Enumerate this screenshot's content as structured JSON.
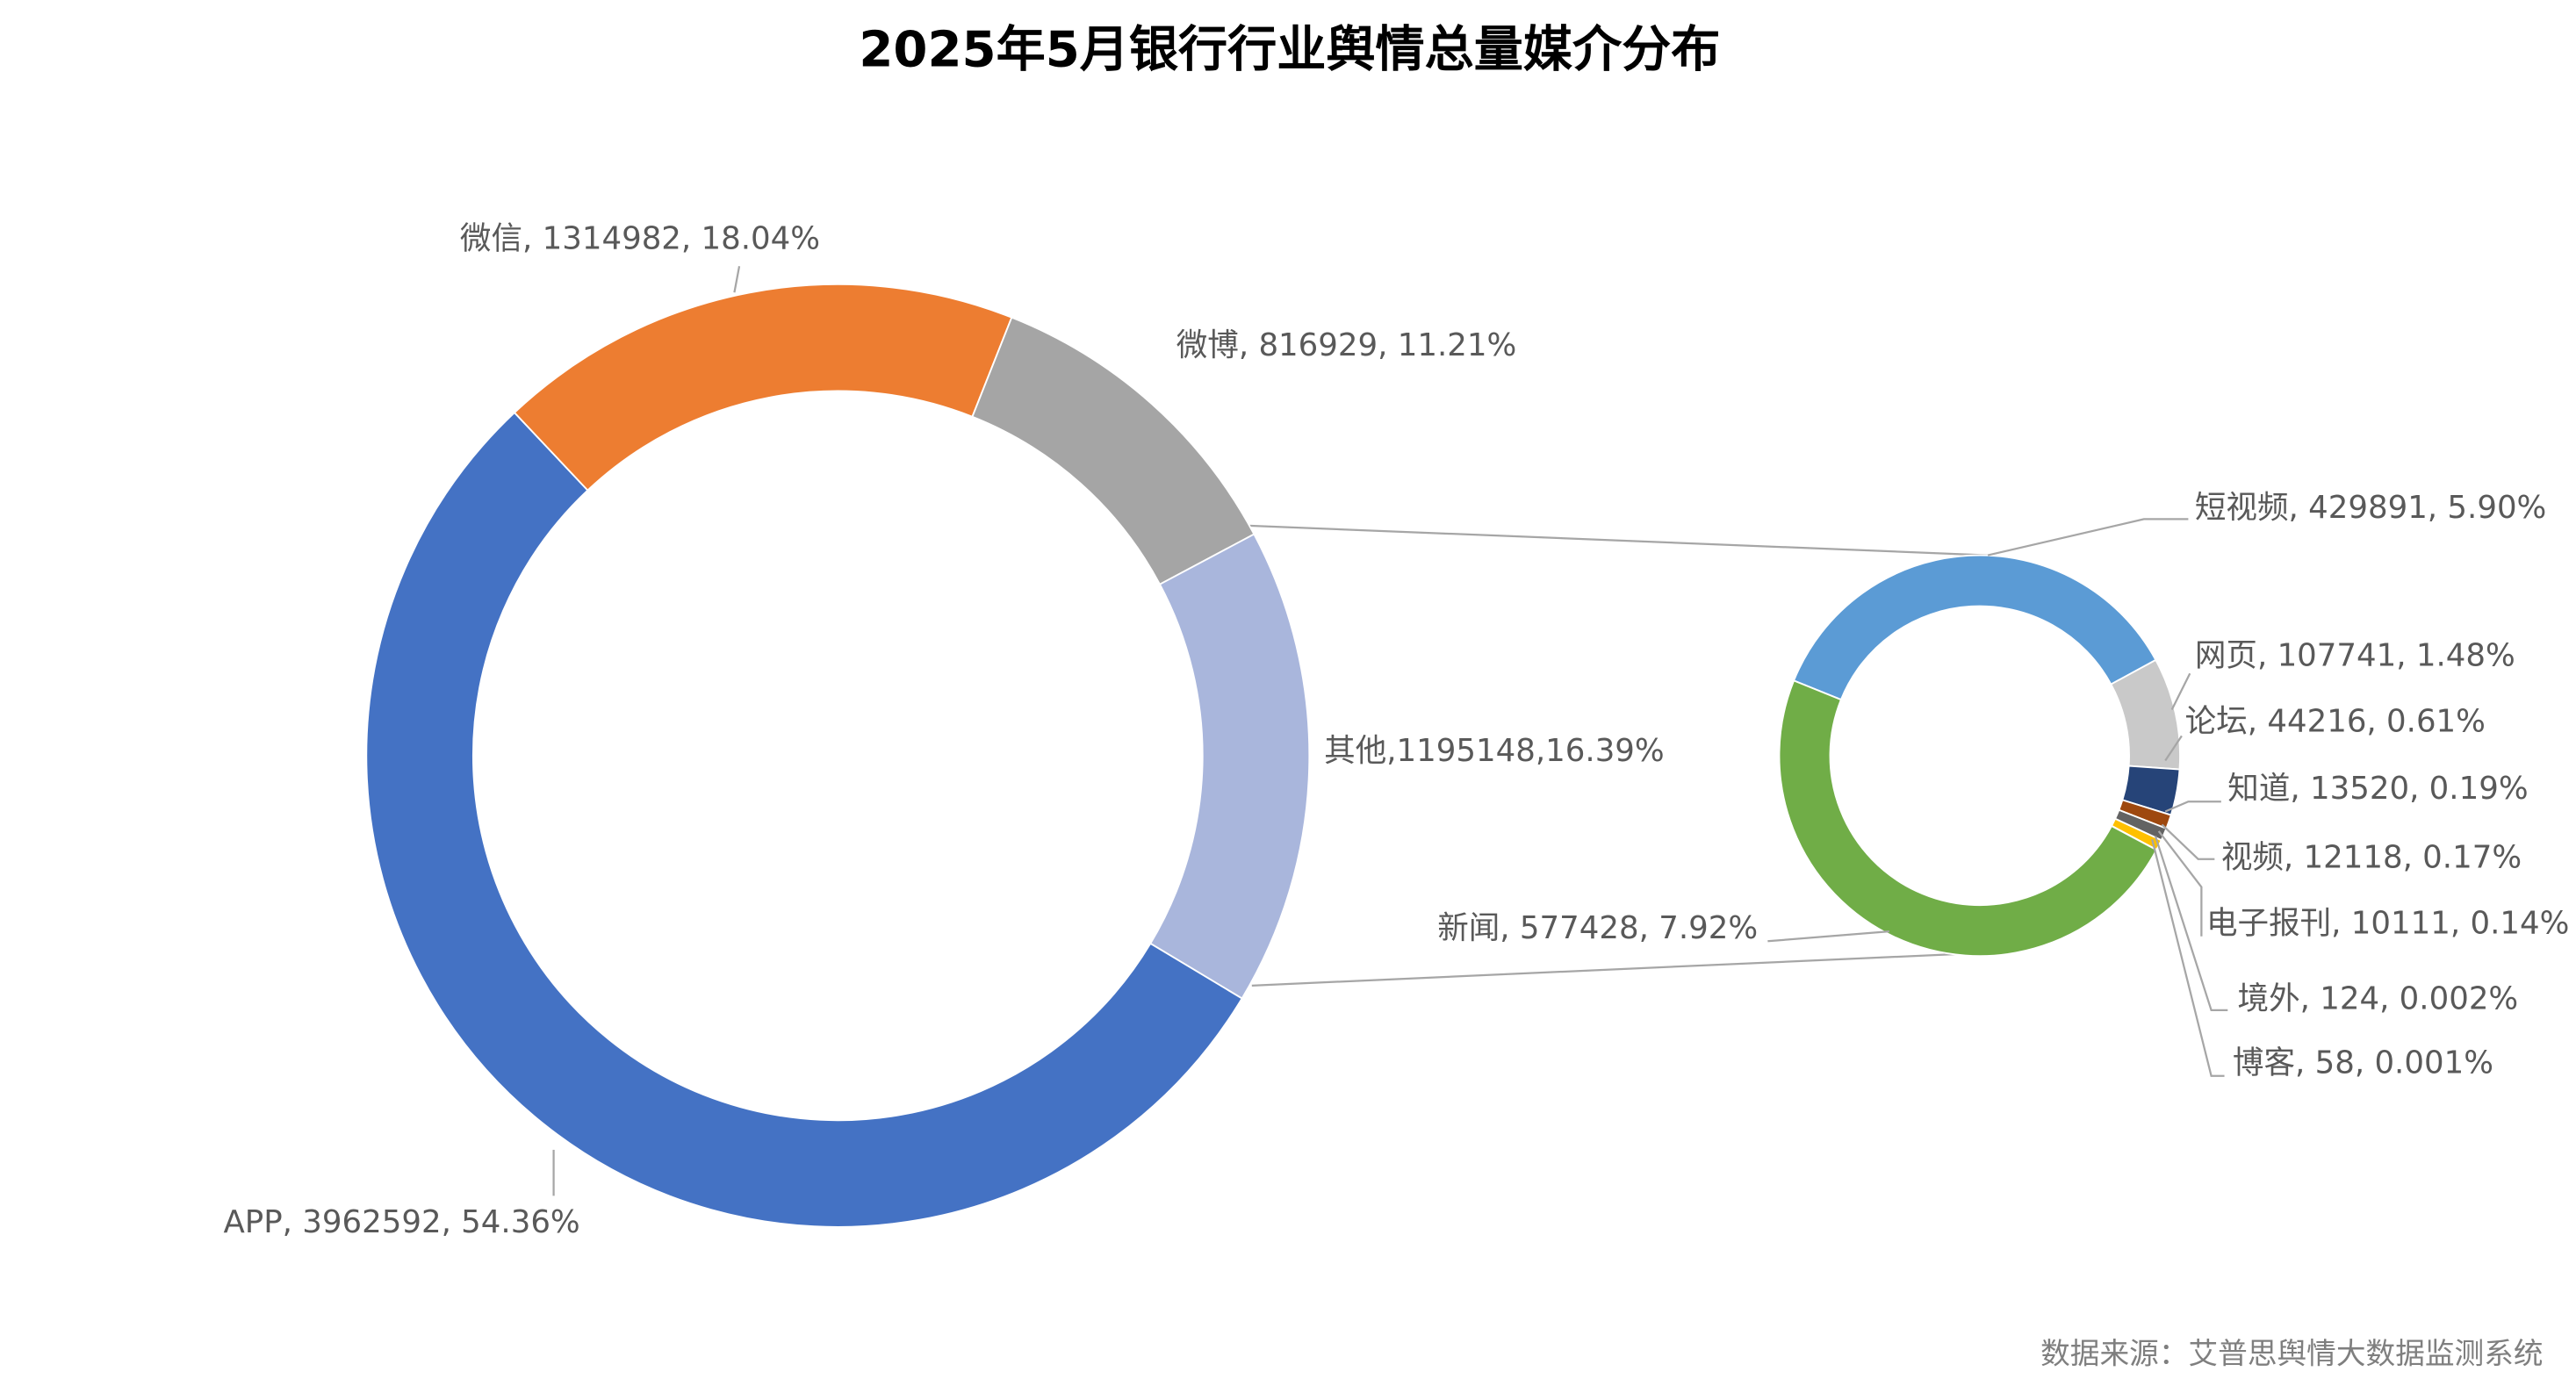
{
  "chart_data": [
    {
      "type": "doughnut",
      "title": "2025年5月银行行业舆情总量媒介分布",
      "source": "数据来源：艾普思舆情大数据监测系统",
      "values": [
        3962592,
        1314982,
        816929,
        1195148
      ],
      "value_labels": [
        "APP, 3962592, 54.36%",
        "微信, 1314982, 18.04%",
        "微博, 816929, 11.21%",
        "其他,1195148,16.39%"
      ],
      "colors": [
        "#4472c4",
        "#ed7d31",
        "#a5a5a5",
        "#a9b6dc"
      ]
    },
    {
      "type": "doughnut",
      "values": [
        429891,
        107741,
        44216,
        13520,
        12118,
        10111,
        124,
        58,
        577428
      ],
      "value_labels": [
        "短视频, 429891, 5.90%",
        "网页, 107741, 1.48%",
        "论坛, 44216, 0.61%",
        "知道, 13520, 0.19%",
        "视频, 12118, 0.17%",
        "电子报刊, 10111, 0.14%",
        "境外, 124, 0.002%",
        "博客, 58, 0.001%",
        "新闻, 577428, 7.92%"
      ],
      "colors": [
        "#5b9bd5",
        "#c9c9c9",
        "#264478",
        "#9e480e",
        "#636363",
        "#ffc000",
        "#997300",
        "#43682b",
        "#70ad47"
      ]
    }
  ]
}
